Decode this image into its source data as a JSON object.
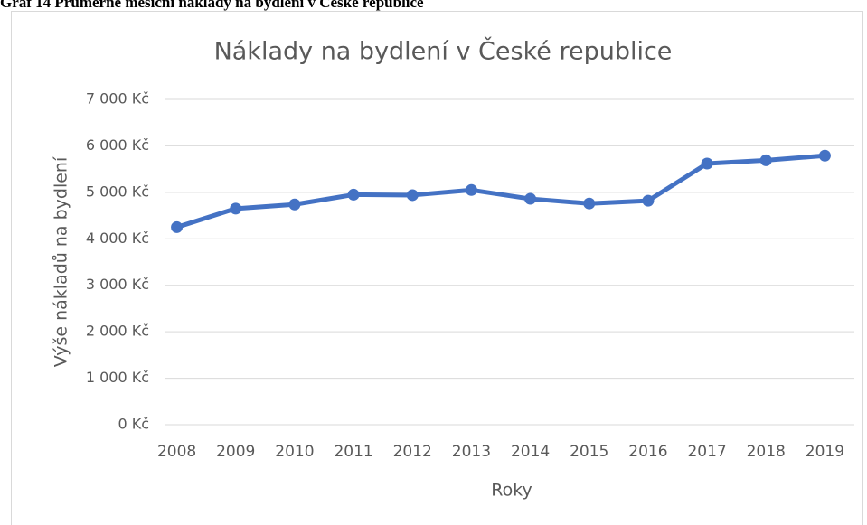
{
  "caption": "Graf 14 Průměrné měsíční náklady na bydlení v České republice",
  "chart_data": {
    "type": "line",
    "title": "Náklady na bydlení v České republice",
    "x_label": "Roky",
    "y_label": "Výše nákladů na bydlení",
    "categories": [
      "2008",
      "2009",
      "2010",
      "2011",
      "2012",
      "2013",
      "2014",
      "2015",
      "2016",
      "2017",
      "2018",
      "2019"
    ],
    "series": [
      {
        "name": "Náklady na bydlení",
        "color": "#4472c4",
        "values": [
          4250,
          4650,
          4740,
          4950,
          4940,
          5050,
          4860,
          4760,
          4820,
          5620,
          5690,
          5790
        ]
      }
    ],
    "ylim": [
      0,
      7000
    ],
    "yticks": [
      {
        "value": 0,
        "label": "0 Kč"
      },
      {
        "value": 1000,
        "label": "1 000 Kč"
      },
      {
        "value": 2000,
        "label": "2 000 Kč"
      },
      {
        "value": 3000,
        "label": "3 000 Kč"
      },
      {
        "value": 4000,
        "label": "4 000 Kč"
      },
      {
        "value": 5000,
        "label": "5 000 Kč"
      },
      {
        "value": 6000,
        "label": "6 000 Kč"
      },
      {
        "value": 7000,
        "label": "7 000 Kč"
      }
    ],
    "grid": true,
    "legend": false
  }
}
